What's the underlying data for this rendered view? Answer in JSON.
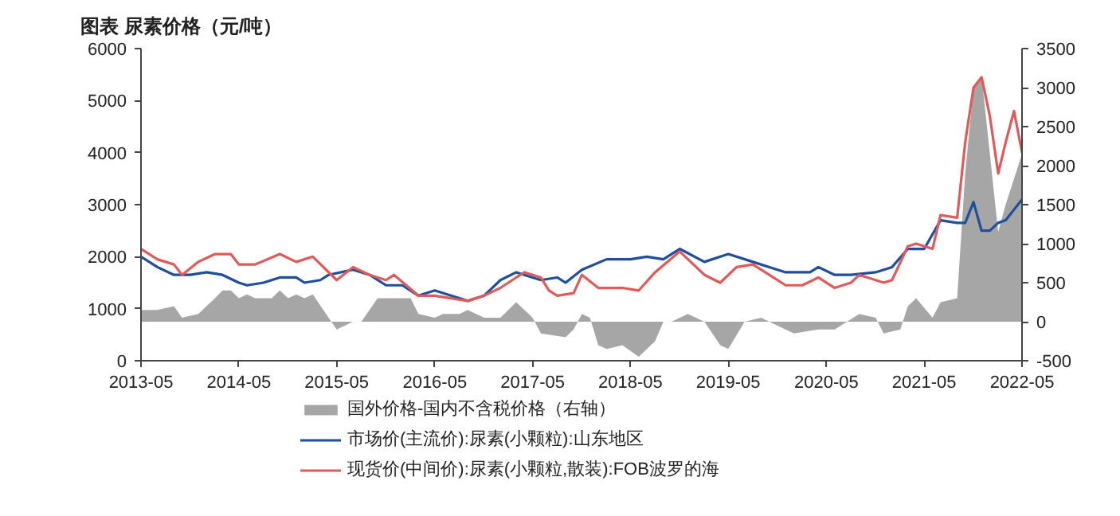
{
  "chart_data": {
    "type": "line",
    "title": "图表 尿素价格（元/吨）",
    "xlim": [
      "2013-05",
      "2022-05"
    ],
    "xticks": [
      "2013-05",
      "2014-05",
      "2015-05",
      "2016-05",
      "2017-05",
      "2018-05",
      "2019-05",
      "2020-05",
      "2021-05",
      "2022-05"
    ],
    "ylim": [
      0,
      6000
    ],
    "yticks": [
      0,
      1000,
      2000,
      3000,
      4000,
      5000,
      6000
    ],
    "y2lim": [
      -500,
      3500
    ],
    "y2ticks": [
      -500,
      0,
      500,
      1000,
      1500,
      2000,
      2500,
      3000,
      3500
    ],
    "legend": "bottom",
    "series": [
      {
        "name": "国外价格-国内不含税价格（右轴）",
        "type": "area",
        "axis": "y2",
        "color": "#a6a6a6",
        "x": [
          "2013-05",
          "2013-07",
          "2013-09",
          "2013-10",
          "2013-12",
          "2014-02",
          "2014-03",
          "2014-04",
          "2014-05",
          "2014-06",
          "2014-07",
          "2014-09",
          "2014-10",
          "2014-11",
          "2014-12",
          "2015-01",
          "2015-02",
          "2015-05",
          "2015-07",
          "2015-08",
          "2015-10",
          "2015-12",
          "2016-02",
          "2016-03",
          "2016-05",
          "2016-06",
          "2016-08",
          "2016-09",
          "2016-11",
          "2017-01",
          "2017-03",
          "2017-05",
          "2017-06",
          "2017-09",
          "2017-10",
          "2017-11",
          "2017-12",
          "2018-01",
          "2018-02",
          "2018-04",
          "2018-06",
          "2018-08",
          "2018-09",
          "2018-10",
          "2018-12",
          "2019-02",
          "2019-04",
          "2019-05",
          "2019-07",
          "2019-09",
          "2019-10",
          "2020-01",
          "2020-04",
          "2020-06",
          "2020-09",
          "2020-11",
          "2020-12",
          "2021-02",
          "2021-03",
          "2021-04",
          "2021-06",
          "2021-07",
          "2021-09",
          "2021-10",
          "2021-11",
          "2021-12",
          "2022-01",
          "2022-02",
          "2022-03",
          "2022-05"
        ],
        "values": [
          150,
          150,
          200,
          50,
          100,
          300,
          400,
          400,
          300,
          350,
          300,
          300,
          400,
          300,
          350,
          300,
          350,
          -100,
          0,
          0,
          300,
          300,
          300,
          100,
          50,
          100,
          100,
          150,
          50,
          50,
          250,
          50,
          -150,
          -200,
          -100,
          100,
          50,
          -300,
          -350,
          -300,
          -450,
          -250,
          0,
          0,
          100,
          0,
          -300,
          -350,
          0,
          50,
          0,
          -150,
          -100,
          -100,
          100,
          50,
          -150,
          -100,
          200,
          300,
          50,
          250,
          300,
          1900,
          3000,
          3150,
          2150,
          1150,
          1500,
          2150
        ]
      },
      {
        "name": "市场价(主流价):尿素(小颗粒):山东地区",
        "color": "#1f4e9c",
        "x": [
          "2013-05",
          "2013-07",
          "2013-09",
          "2013-11",
          "2014-01",
          "2014-03",
          "2014-05",
          "2014-06",
          "2014-08",
          "2014-10",
          "2014-12",
          "2015-01",
          "2015-03",
          "2015-04",
          "2015-07",
          "2015-09",
          "2015-11",
          "2016-01",
          "2016-03",
          "2016-05",
          "2016-07",
          "2016-09",
          "2016-11",
          "2017-01",
          "2017-03",
          "2017-05",
          "2017-06",
          "2017-08",
          "2017-09",
          "2017-11",
          "2018-02",
          "2018-05",
          "2018-07",
          "2018-09",
          "2018-11",
          "2019-02",
          "2019-05",
          "2019-08",
          "2019-10",
          "2019-12",
          "2020-03",
          "2020-04",
          "2020-06",
          "2020-08",
          "2020-11",
          "2021-01",
          "2021-03",
          "2021-05",
          "2021-07",
          "2021-09",
          "2021-10",
          "2021-11",
          "2021-12",
          "2022-01",
          "2022-02",
          "2022-03",
          "2022-05"
        ],
        "values": [
          2000,
          1800,
          1650,
          1650,
          1700,
          1650,
          1500,
          1450,
          1500,
          1600,
          1600,
          1500,
          1550,
          1650,
          1750,
          1650,
          1450,
          1450,
          1250,
          1350,
          1250,
          1150,
          1250,
          1550,
          1700,
          1600,
          1550,
          1600,
          1500,
          1750,
          1950,
          1950,
          2000,
          1950,
          2150,
          1900,
          2050,
          1900,
          1800,
          1700,
          1700,
          1800,
          1650,
          1650,
          1700,
          1800,
          2150,
          2150,
          2700,
          2650,
          2650,
          3050,
          2500,
          2500,
          2650,
          2700,
          3100
        ]
      },
      {
        "name": "现货价(中间价):尿素(小颗粒,散装):FOB波罗的海",
        "color": "#e05a5a",
        "x": [
          "2013-05",
          "2013-07",
          "2013-09",
          "2013-10",
          "2013-12",
          "2014-02",
          "2014-04",
          "2014-05",
          "2014-07",
          "2014-10",
          "2014-12",
          "2015-02",
          "2015-05",
          "2015-07",
          "2015-09",
          "2015-11",
          "2015-12",
          "2016-03",
          "2016-04",
          "2016-05",
          "2016-09",
          "2016-11",
          "2017-01",
          "2017-03",
          "2017-04",
          "2017-06",
          "2017-07",
          "2017-08",
          "2017-10",
          "2017-11",
          "2018-01",
          "2018-04",
          "2018-06",
          "2018-08",
          "2018-11",
          "2019-02",
          "2019-04",
          "2019-06",
          "2019-08",
          "2019-10",
          "2019-12",
          "2020-02",
          "2020-04",
          "2020-06",
          "2020-08",
          "2020-09",
          "2020-12",
          "2021-01",
          "2021-03",
          "2021-04",
          "2021-06",
          "2021-07",
          "2021-09",
          "2021-10",
          "2021-11",
          "2021-12",
          "2022-01",
          "2022-02",
          "2022-03",
          "2022-04",
          "2022-05"
        ],
        "values": [
          2150,
          1950,
          1850,
          1650,
          1900,
          2050,
          2050,
          1850,
          1850,
          2050,
          1900,
          2000,
          1550,
          1800,
          1650,
          1550,
          1650,
          1250,
          1250,
          1250,
          1150,
          1250,
          1400,
          1600,
          1700,
          1600,
          1350,
          1250,
          1300,
          1650,
          1400,
          1400,
          1350,
          1700,
          2100,
          1650,
          1500,
          1800,
          1850,
          1650,
          1450,
          1450,
          1600,
          1400,
          1500,
          1650,
          1500,
          1550,
          2200,
          2250,
          2150,
          2800,
          2750,
          4200,
          5250,
          5450,
          4700,
          3600,
          4200,
          4800,
          4000
        ]
      }
    ]
  }
}
